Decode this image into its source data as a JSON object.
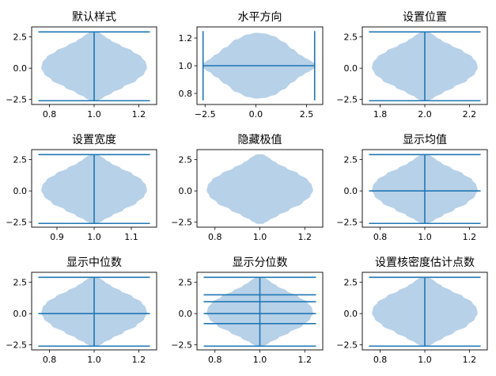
{
  "colors": {
    "body": "#b7d1e8",
    "line": "#1f77b4"
  },
  "chart_data": [
    {
      "type": "violin",
      "title": "默认样式",
      "orientation": "vertical",
      "position": 1.0,
      "width": 0.5,
      "data_range": [
        -2.6,
        2.9
      ],
      "xlim": [
        0.72,
        1.28
      ],
      "ylim": [
        -2.9,
        3.3
      ],
      "xticks": [
        0.8,
        1.0,
        1.2
      ],
      "yticks": [
        -2.5,
        0.0,
        2.5
      ],
      "xticklabels": [
        "0.8",
        "1.0",
        "1.2"
      ],
      "yticklabels": [
        "−2.5",
        "0.0",
        "2.5"
      ],
      "show_extrema": true,
      "show_means": false,
      "show_medians": false,
      "quantiles": []
    },
    {
      "type": "violin",
      "title": "水平方向",
      "orientation": "horizontal",
      "position": 1.0,
      "width": 0.5,
      "data_range": [
        -2.6,
        2.9
      ],
      "xlim": [
        -2.9,
        3.3
      ],
      "ylim": [
        0.72,
        1.28
      ],
      "xticks": [
        -2.5,
        0.0,
        2.5
      ],
      "yticks": [
        0.8,
        1.0,
        1.2
      ],
      "xticklabels": [
        "−2.5",
        "0.0",
        "2.5"
      ],
      "yticklabels": [
        "0.8",
        "1.0",
        "1.2"
      ],
      "show_extrema": true,
      "show_means": false,
      "show_medians": false,
      "quantiles": []
    },
    {
      "type": "violin",
      "title": "设置位置",
      "orientation": "vertical",
      "position": 2.0,
      "width": 0.5,
      "data_range": [
        -2.6,
        2.9
      ],
      "xlim": [
        1.72,
        2.28
      ],
      "ylim": [
        -2.9,
        3.3
      ],
      "xticks": [
        1.8,
        2.0,
        2.2
      ],
      "yticks": [
        -2.5,
        0.0,
        2.5
      ],
      "xticklabels": [
        "1.8",
        "2.0",
        "2.2"
      ],
      "yticklabels": [
        "−2.5",
        "0.0",
        "2.5"
      ],
      "show_extrema": true,
      "show_means": false,
      "show_medians": false,
      "quantiles": []
    },
    {
      "type": "violin",
      "title": "设置宽度",
      "orientation": "vertical",
      "position": 1.0,
      "width": 0.3,
      "data_range": [
        -2.6,
        2.9
      ],
      "xlim": [
        0.832,
        1.168
      ],
      "ylim": [
        -2.9,
        3.3
      ],
      "xticks": [
        0.9,
        1.0,
        1.1
      ],
      "yticks": [
        -2.5,
        0.0,
        2.5
      ],
      "xticklabels": [
        "0.9",
        "1.0",
        "1.1"
      ],
      "yticklabels": [
        "−2.5",
        "0.0",
        "2.5"
      ],
      "show_extrema": true,
      "show_means": false,
      "show_medians": false,
      "quantiles": []
    },
    {
      "type": "violin",
      "title": "隐藏极值",
      "orientation": "vertical",
      "position": 1.0,
      "width": 0.5,
      "data_range": [
        -2.6,
        2.9
      ],
      "xlim": [
        0.72,
        1.28
      ],
      "ylim": [
        -2.9,
        3.3
      ],
      "xticks": [
        0.8,
        1.0,
        1.2
      ],
      "yticks": [
        -2.5,
        0.0,
        2.5
      ],
      "xticklabels": [
        "0.8",
        "1.0",
        "1.2"
      ],
      "yticklabels": [
        "−2.5",
        "0.0",
        "2.5"
      ],
      "show_extrema": false,
      "show_means": false,
      "show_medians": false,
      "quantiles": []
    },
    {
      "type": "violin",
      "title": "显示均值",
      "orientation": "vertical",
      "position": 1.0,
      "width": 0.5,
      "data_range": [
        -2.6,
        2.9
      ],
      "xlim": [
        0.72,
        1.28
      ],
      "ylim": [
        -2.9,
        3.3
      ],
      "xticks": [
        0.8,
        1.0,
        1.2
      ],
      "yticks": [
        -2.5,
        0.0,
        2.5
      ],
      "xticklabels": [
        "0.8",
        "1.0",
        "1.2"
      ],
      "yticklabels": [
        "−2.5",
        "0.0",
        "2.5"
      ],
      "show_extrema": true,
      "show_means": true,
      "mean": 0.0,
      "show_medians": false,
      "quantiles": []
    },
    {
      "type": "violin",
      "title": "显示中位数",
      "orientation": "vertical",
      "position": 1.0,
      "width": 0.5,
      "data_range": [
        -2.6,
        2.9
      ],
      "xlim": [
        0.72,
        1.28
      ],
      "ylim": [
        -2.9,
        3.3
      ],
      "xticks": [
        0.8,
        1.0,
        1.2
      ],
      "yticks": [
        -2.5,
        0.0,
        2.5
      ],
      "xticklabels": [
        "0.8",
        "1.0",
        "1.2"
      ],
      "yticklabels": [
        "−2.5",
        "0.0",
        "2.5"
      ],
      "show_extrema": true,
      "show_means": false,
      "show_medians": true,
      "median": 0.0,
      "quantiles": []
    },
    {
      "type": "violin",
      "title": "显示分位数",
      "orientation": "vertical",
      "position": 1.0,
      "width": 0.5,
      "data_range": [
        -2.6,
        2.9
      ],
      "xlim": [
        0.72,
        1.28
      ],
      "ylim": [
        -2.9,
        3.3
      ],
      "xticks": [
        0.8,
        1.0,
        1.2
      ],
      "yticks": [
        -2.5,
        0.0,
        2.5
      ],
      "xticklabels": [
        "0.8",
        "1.0",
        "1.2"
      ],
      "yticklabels": [
        "−2.5",
        "0.0",
        "2.5"
      ],
      "show_extrema": true,
      "show_means": false,
      "show_medians": false,
      "quantiles": [
        -0.8,
        0.0,
        0.95,
        1.5
      ]
    },
    {
      "type": "violin",
      "title": "设置核密度估计点数",
      "orientation": "vertical",
      "position": 1.0,
      "width": 0.5,
      "data_range": [
        -2.6,
        2.9
      ],
      "xlim": [
        0.72,
        1.28
      ],
      "ylim": [
        -2.9,
        3.3
      ],
      "xticks": [
        0.8,
        1.0,
        1.2
      ],
      "yticks": [
        -2.5,
        0.0,
        2.5
      ],
      "xticklabels": [
        "0.8",
        "1.0",
        "1.2"
      ],
      "yticklabels": [
        "−2.5",
        "0.0",
        "2.5"
      ],
      "show_extrema": true,
      "show_means": false,
      "show_medians": false,
      "quantiles": []
    }
  ]
}
